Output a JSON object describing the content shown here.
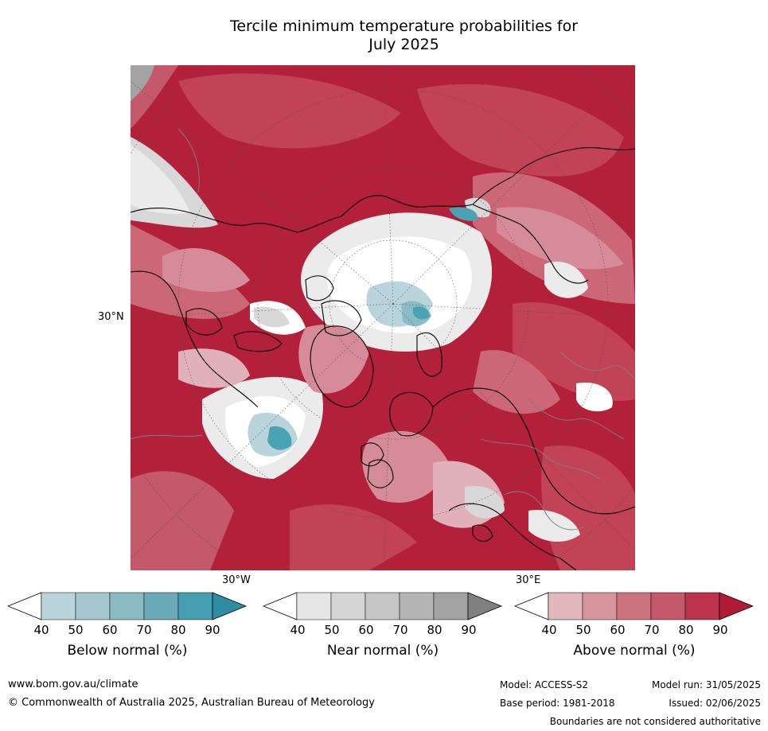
{
  "title_line1": "Tercile minimum temperature probabilities for",
  "title_line2": "July 2025",
  "map": {
    "lat_label": "30°N",
    "lon_label_west": "30°W",
    "lon_label_east": "30°E",
    "colors": {
      "ocean_base": "#b3203a",
      "above_90": "#b01c36",
      "above_80": "#c24356",
      "above_70": "#cc6777",
      "above_60": "#d68c98",
      "above_50": "#e0b1b9",
      "near": "#d8d8d8",
      "near_light": "#ebebeb",
      "near_dark": "#a3a3a3",
      "below_50": "#b9d4da",
      "below_70": "#8bbcc5",
      "below_80": "#4aa3b3",
      "coast": "#000000",
      "border": "#808080",
      "grid": "#555555"
    }
  },
  "colorbars": [
    {
      "name": "below",
      "label": "Below normal (%)",
      "ticks": [
        "40",
        "50",
        "60",
        "70",
        "80",
        "90"
      ],
      "colors": [
        "#ffffff",
        "#bad4db",
        "#a5c7cf",
        "#8abbc3",
        "#6babb7",
        "#469fb0",
        "#2d8ea3"
      ]
    },
    {
      "name": "near",
      "label": "Near normal (%)",
      "ticks": [
        "40",
        "50",
        "60",
        "70",
        "80",
        "90"
      ],
      "colors": [
        "#ffffff",
        "#e6e6e6",
        "#d5d5d5",
        "#c6c6c6",
        "#b4b4b4",
        "#a3a3a3",
        "#808080"
      ]
    },
    {
      "name": "above",
      "label": "Above normal (%)",
      "ticks": [
        "40",
        "50",
        "60",
        "70",
        "80",
        "90"
      ],
      "colors": [
        "#ffffff",
        "#e3b8bd",
        "#d9959e",
        "#cc737f",
        "#c3596a",
        "#bb344b",
        "#b01c36"
      ]
    }
  ],
  "footer": {
    "url": "www.bom.gov.au/climate",
    "copyright": "© Commonwealth of Australia 2025, Australian Bureau of Meteorology",
    "model": "Model: ACCESS-S2",
    "base_period": "Base period: 1981-2018",
    "model_run": "Model run: 31/05/2025",
    "issued": "Issued: 02/06/2025",
    "disclaimer": "Boundaries are not considered authoritative"
  }
}
